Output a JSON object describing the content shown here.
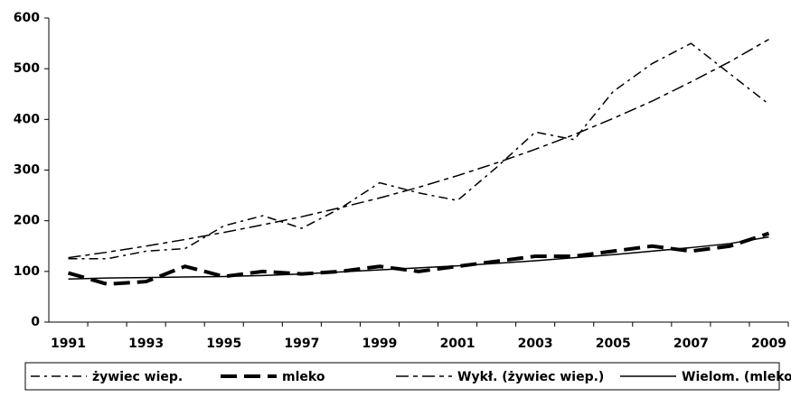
{
  "chart_data": {
    "type": "line",
    "categories": [
      "1991",
      null,
      "1993",
      null,
      "1995",
      null,
      "1997",
      null,
      "1999",
      null,
      "2001",
      null,
      "2003",
      null,
      "2005",
      null,
      "2007",
      null,
      "2009"
    ],
    "series": [
      {
        "name": "żywiec wiep.",
        "color": "#000000",
        "style": "dashdot",
        "values": [
          125,
          125,
          140,
          145,
          190,
          210,
          185,
          225,
          275,
          255,
          240,
          305,
          375,
          360,
          455,
          510,
          550,
          490,
          430
        ]
      },
      {
        "name": "mleko",
        "color": "#000000",
        "style": "thickdash",
        "values": [
          97,
          75,
          80,
          110,
          90,
          100,
          95,
          100,
          110,
          100,
          110,
          120,
          130,
          130,
          140,
          150,
          140,
          150,
          175
        ]
      },
      {
        "name": "Wykł. (żywiec wiep.)",
        "color": "#000000",
        "style": "longshort",
        "values": [
          127,
          138,
          150,
          163,
          177,
          192,
          208,
          226,
          245,
          266,
          289,
          314,
          341,
          370,
          402,
          436,
          474,
          514,
          558
        ]
      },
      {
        "name": "Wielom. (mleko)",
        "color": "#000000",
        "style": "solid",
        "values": [
          85,
          87,
          88,
          89,
          90,
          92,
          95,
          99,
          103,
          107,
          111,
          116,
          121,
          127,
          133,
          140,
          147,
          155,
          168
        ]
      }
    ],
    "ylim": [
      0,
      600
    ],
    "yticks": [
      0,
      100,
      200,
      300,
      400,
      500,
      600
    ],
    "legend": "bottom"
  }
}
